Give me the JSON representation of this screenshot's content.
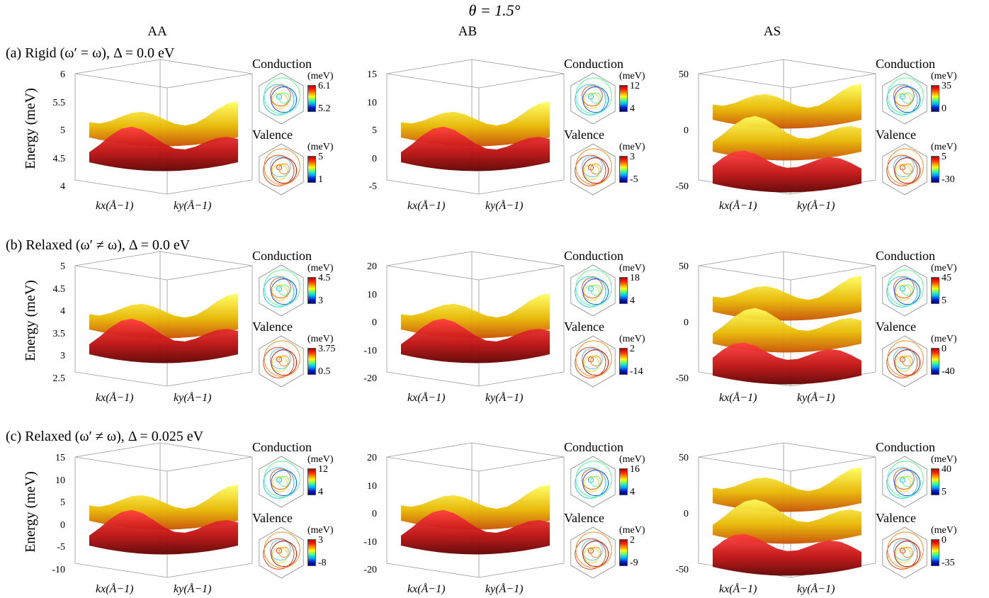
{
  "figure_title": "θ = 1.5°",
  "columns": [
    "AA",
    "AB",
    "AS"
  ],
  "y_axis_label": "Energy (meV)",
  "kx_label": "kx(Å−1)",
  "ky_label": "ky(Å−1)",
  "conduction_label": "Conduction",
  "valence_label": "Valence",
  "unit_label": "(meV)",
  "rows": [
    {
      "label": "(a) Rigid (ω′ = ω), Δ = 0.0 eV",
      "panels": [
        {
          "yticks": [
            "6",
            "5.5",
            "5",
            "4.5",
            "4"
          ],
          "cond": [
            "6.1",
            "5.2"
          ],
          "val": [
            "5",
            "1"
          ]
        },
        {
          "yticks": [
            "15",
            "10",
            "5",
            "0",
            "-5"
          ],
          "cond": [
            "12",
            "4"
          ],
          "val": [
            "3",
            "-5"
          ]
        },
        {
          "yticks": [
            "50",
            "0",
            "-50"
          ],
          "cond": [
            "35",
            "0"
          ],
          "val": [
            "5",
            "-30"
          ]
        }
      ]
    },
    {
      "label": "(b) Relaxed (ω′ ≠ ω), Δ = 0.0 eV",
      "panels": [
        {
          "yticks": [
            "5",
            "4.5",
            "4",
            "3.5",
            "3",
            "2.5"
          ],
          "cond": [
            "4.5",
            "3"
          ],
          "val": [
            "3.75",
            "0.5"
          ]
        },
        {
          "yticks": [
            "20",
            "10",
            "0",
            "-10",
            "-20"
          ],
          "cond": [
            "18",
            "4"
          ],
          "val": [
            "2",
            "-14"
          ]
        },
        {
          "yticks": [
            "50",
            "0",
            "-50"
          ],
          "cond": [
            "45",
            "5"
          ],
          "val": [
            "0",
            "-40"
          ]
        }
      ]
    },
    {
      "label": "(c) Relaxed (ω′ ≠ ω), Δ = 0.025 eV",
      "panels": [
        {
          "yticks": [
            "15",
            "10",
            "5",
            "0",
            "-5",
            "-10"
          ],
          "cond": [
            "12",
            "4"
          ],
          "val": [
            "3",
            "-8"
          ]
        },
        {
          "yticks": [
            "20",
            "10",
            "0",
            "-10",
            "-20"
          ],
          "cond": [
            "16",
            "4"
          ],
          "val": [
            "2",
            "-9"
          ]
        },
        {
          "yticks": [
            "50",
            "0",
            "-50"
          ],
          "cond": [
            "40",
            "5"
          ],
          "val": [
            "0",
            "-35"
          ]
        }
      ]
    }
  ]
}
